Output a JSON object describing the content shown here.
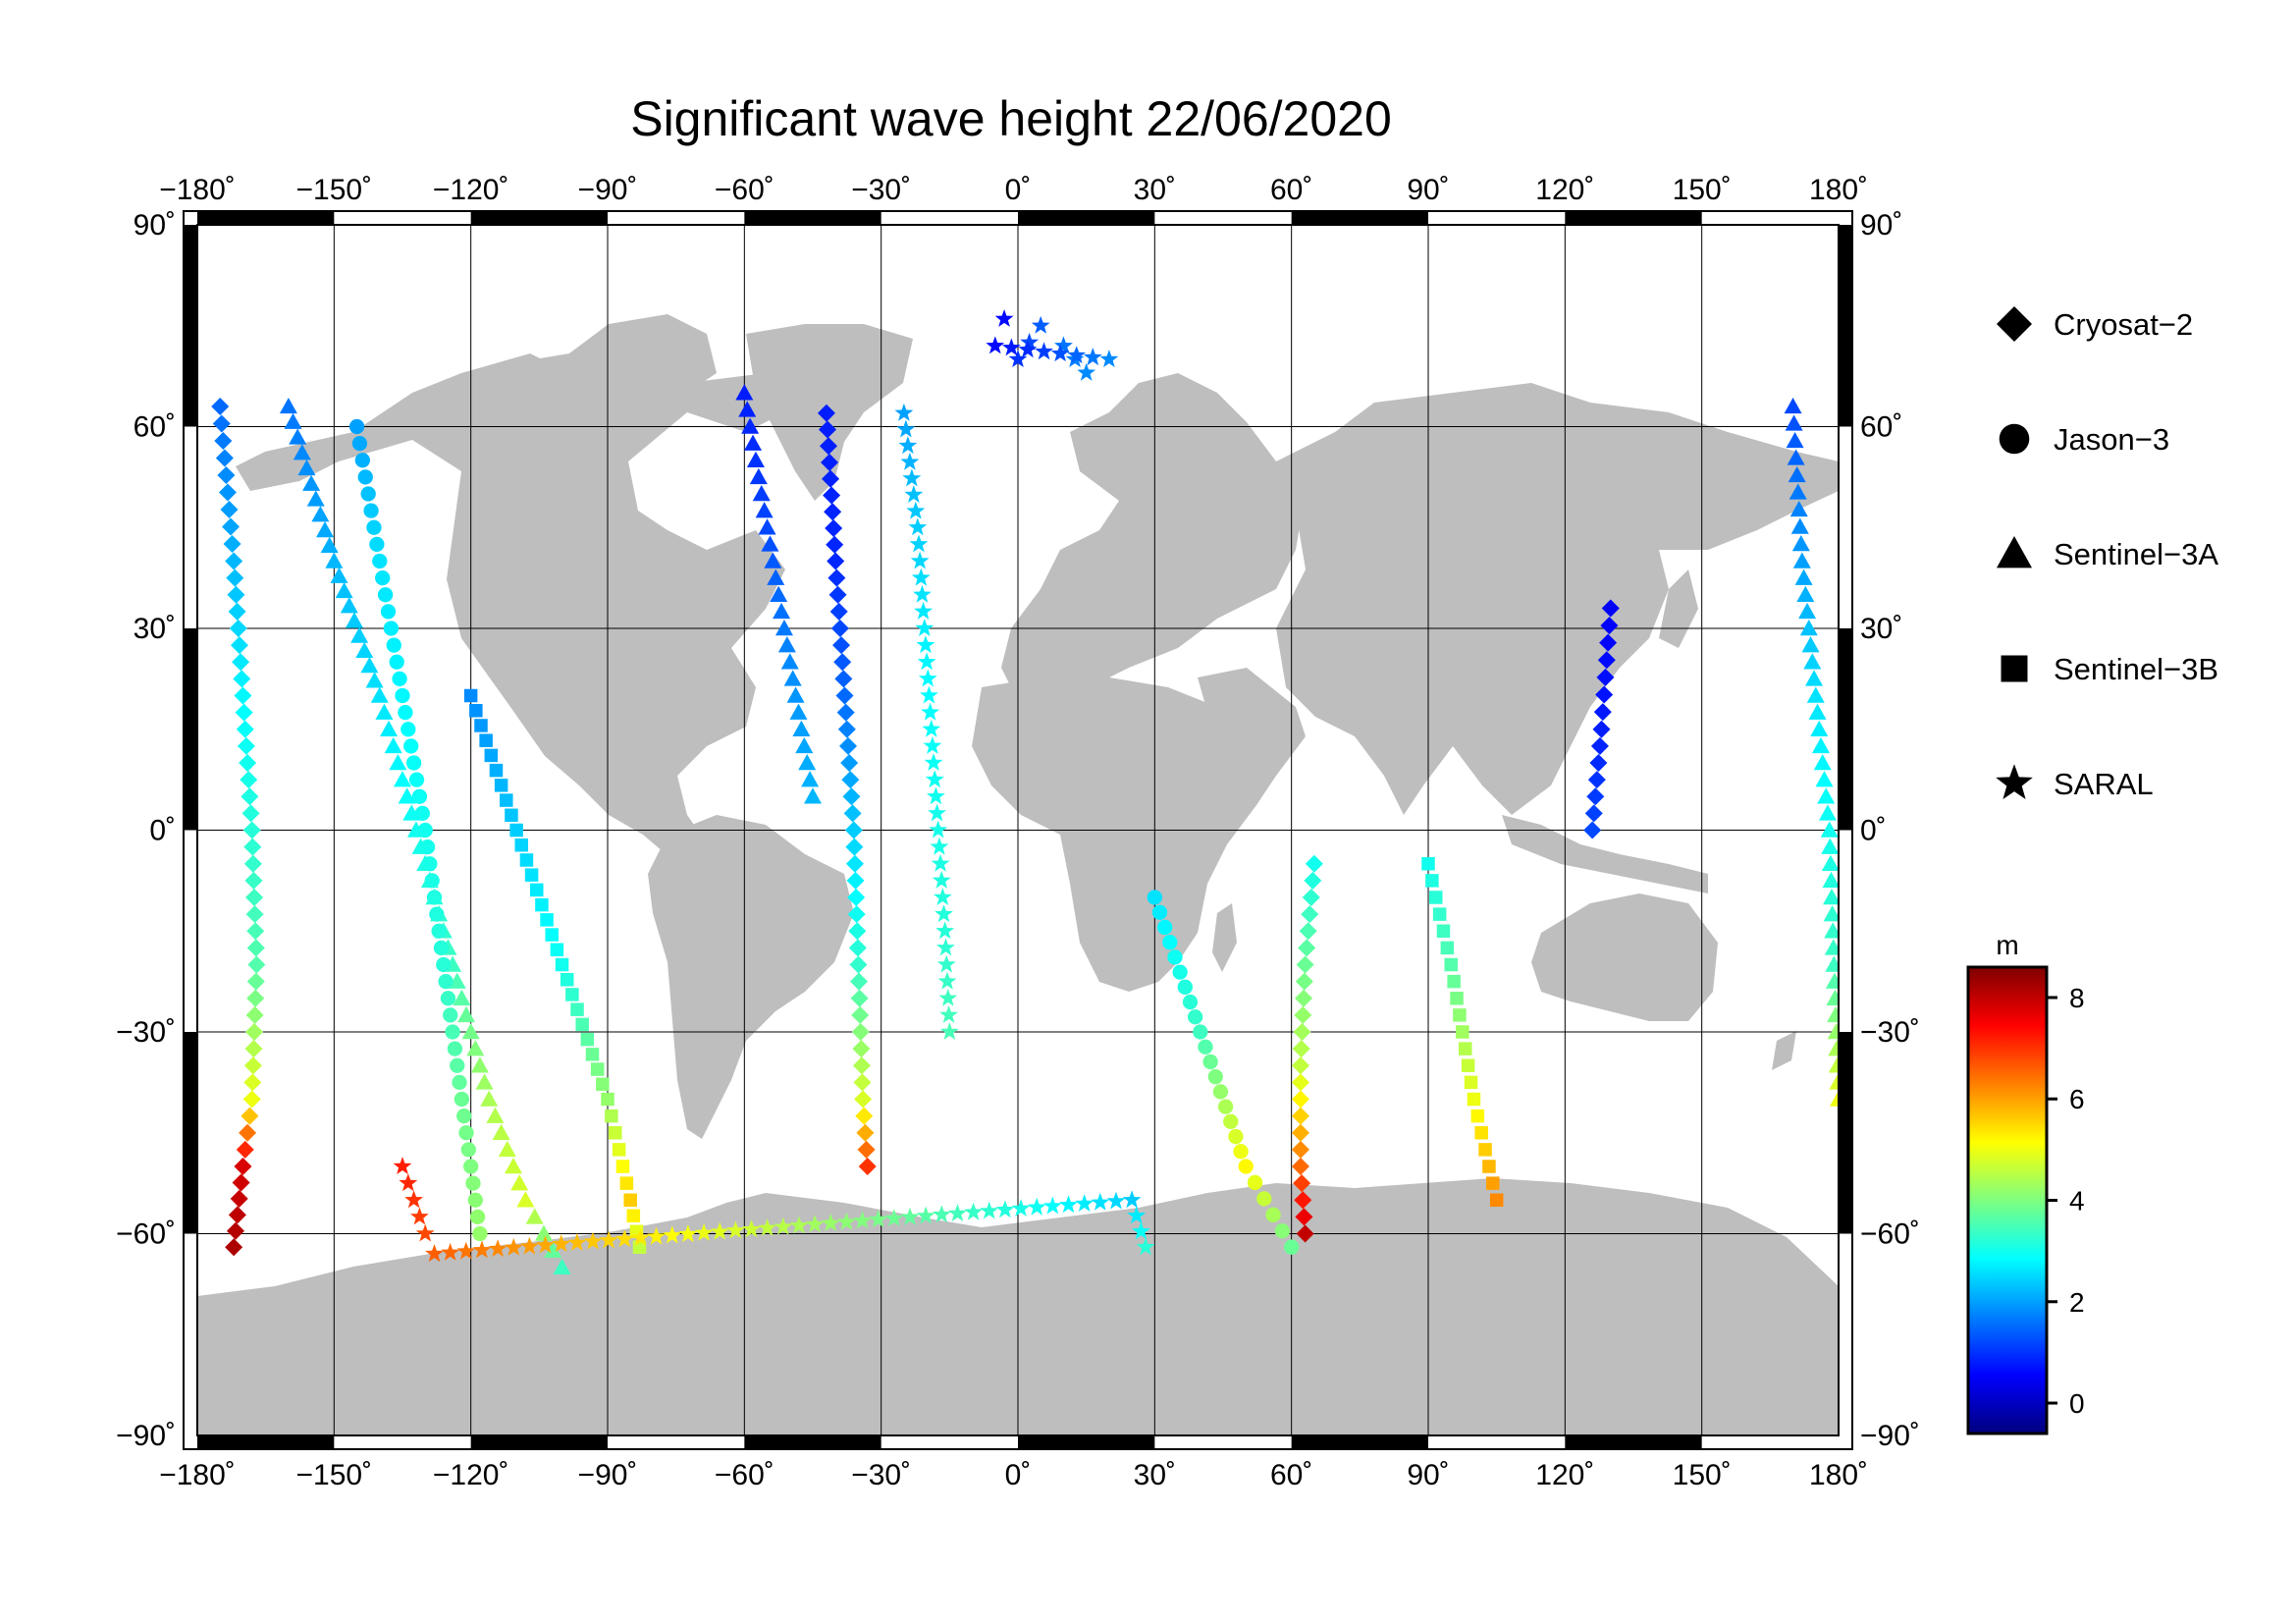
{
  "title": "Significant wave height 22/06/2020",
  "map": {
    "lon_ticks": [
      "−180˚",
      "−150˚",
      "−120˚",
      "−90˚",
      "−60˚",
      "−30˚",
      "0˚",
      "30˚",
      "60˚",
      "90˚",
      "120˚",
      "150˚",
      "180˚"
    ],
    "lat_ticks_left": [
      "90˚",
      "60˚",
      "30˚",
      "0˚",
      "−30˚",
      "−60˚",
      "−90˚"
    ],
    "lat_ticks_right": [
      "90˚",
      "60˚",
      "30˚",
      "0˚",
      "−30˚",
      "−60˚",
      "−90˚"
    ],
    "lon_range": [
      -180,
      180
    ],
    "lat_range": [
      -90,
      90
    ],
    "grid": true,
    "land_color": "#bebebe",
    "ocean_color": "#ffffff"
  },
  "legend": {
    "items": [
      {
        "label": "Cryosat−2",
        "marker": "diamond"
      },
      {
        "label": "Jason−3",
        "marker": "circle"
      },
      {
        "label": "Sentinel−3A",
        "marker": "triangle"
      },
      {
        "label": "Sentinel−3B",
        "marker": "square"
      },
      {
        "label": "SARAL",
        "marker": "star"
      }
    ]
  },
  "colorbar": {
    "unit": "m",
    "ticks": [
      "0",
      "2",
      "4",
      "6",
      "8"
    ],
    "range": [
      -0.6,
      8.6
    ],
    "colormap": [
      "#00007f",
      "#0000ff",
      "#007fff",
      "#00ffff",
      "#7fff7f",
      "#ffff00",
      "#ff7f00",
      "#ff0000",
      "#7f0000"
    ]
  },
  "chart_data": {
    "type": "scatter",
    "title": "Significant wave height 22/06/2020",
    "xlabel": "",
    "ylabel": "",
    "xlim": [
      -180,
      180
    ],
    "ylim": [
      -90,
      90
    ],
    "color_variable": "m",
    "tracks": [
      {
        "name": "Cryosat−2",
        "marker": "diamond",
        "points": [
          [
            -175,
            63,
            1.5
          ],
          [
            -172,
            40,
            2.2
          ],
          [
            -170,
            20,
            2.8
          ],
          [
            -168,
            0,
            3.2
          ],
          [
            -167,
            -20,
            3.6
          ],
          [
            -168,
            -40,
            5
          ],
          [
            -170,
            -50,
            7.8
          ],
          [
            -172,
            -62,
            8.2
          ]
        ]
      },
      {
        "name": "Cryosat−2",
        "marker": "diamond",
        "points": [
          [
            -42,
            62,
            0.8
          ],
          [
            -40,
            40,
            0.9
          ],
          [
            -38,
            20,
            1.5
          ],
          [
            -36,
            0,
            2.4
          ],
          [
            -35,
            -20,
            3.3
          ],
          [
            -34,
            -40,
            4.8
          ],
          [
            -33,
            -50,
            7
          ]
        ]
      },
      {
        "name": "Cryosat−2",
        "marker": "diamond",
        "points": [
          [
            65,
            -5,
            3
          ],
          [
            63,
            -20,
            3.8
          ],
          [
            62,
            -35,
            4.6
          ],
          [
            62,
            -50,
            6.5
          ],
          [
            63,
            -60,
            8
          ]
        ]
      },
      {
        "name": "Cryosat−2",
        "marker": "diamond",
        "points": [
          [
            130,
            33,
            0.5
          ],
          [
            128,
            15,
            0.8
          ],
          [
            126,
            0,
            1.2
          ]
        ]
      },
      {
        "name": "Sentinel−3A",
        "marker": "triangle",
        "points": [
          [
            -160,
            63,
            1.6
          ],
          [
            -150,
            40,
            2.2
          ],
          [
            -140,
            20,
            2.6
          ],
          [
            -132,
            0,
            3
          ],
          [
            -124,
            -20,
            3.4
          ],
          [
            -116,
            -40,
            4.4
          ],
          [
            -108,
            -55,
            4.8
          ],
          [
            -100,
            -65,
            3.4
          ]
        ]
      },
      {
        "name": "Sentinel−3A",
        "marker": "triangle",
        "points": [
          [
            -60,
            65,
            0.8
          ],
          [
            -55,
            45,
            1.2
          ],
          [
            -50,
            25,
            1.8
          ],
          [
            -45,
            5,
            2.2
          ]
        ]
      },
      {
        "name": "Sentinel−3A",
        "marker": "triangle",
        "points": [
          [
            170,
            63,
            1.2
          ],
          [
            172,
            40,
            2
          ],
          [
            175,
            20,
            2.6
          ],
          [
            178,
            0,
            3
          ],
          [
            179,
            -20,
            3.4
          ],
          [
            180,
            -40,
            5
          ]
        ]
      },
      {
        "name": "Sentinel−3B",
        "marker": "square",
        "points": [
          [
            -120,
            20,
            1.8
          ],
          [
            -110,
            0,
            2.4
          ],
          [
            -100,
            -20,
            3
          ],
          [
            -90,
            -40,
            4.2
          ],
          [
            -85,
            -55,
            5.6
          ],
          [
            -83,
            -62,
            4.6
          ]
        ]
      },
      {
        "name": "Sentinel−3B",
        "marker": "square",
        "points": [
          [
            90,
            -5,
            3
          ],
          [
            95,
            -20,
            3.6
          ],
          [
            100,
            -40,
            5
          ],
          [
            105,
            -55,
            6.2
          ]
        ]
      },
      {
        "name": "Jason−3",
        "marker": "circle",
        "points": [
          [
            -145,
            60,
            2
          ],
          [
            -140,
            40,
            2.6
          ],
          [
            -135,
            20,
            2.8
          ],
          [
            -130,
            0,
            3
          ],
          [
            -126,
            -20,
            3.2
          ],
          [
            -122,
            -40,
            3.8
          ],
          [
            -118,
            -60,
            4.2
          ]
        ]
      },
      {
        "name": "Jason−3",
        "marker": "circle",
        "points": [
          [
            30,
            -10,
            2.6
          ],
          [
            40,
            -30,
            3.4
          ],
          [
            50,
            -50,
            5.2
          ],
          [
            60,
            -62,
            3.8
          ]
        ]
      },
      {
        "name": "SARAL",
        "marker": "star",
        "points": [
          [
            0,
            70,
            1
          ],
          [
            5,
            75,
            1.4
          ],
          [
            10,
            72,
            1.6
          ],
          [
            15,
            68,
            1.8
          ],
          [
            20,
            70,
            1.8
          ],
          [
            -5,
            72,
            0.6
          ],
          [
            -3,
            76,
            0.6
          ]
        ]
      },
      {
        "name": "SARAL",
        "marker": "star",
        "points": [
          [
            -25,
            62,
            2
          ],
          [
            -22,
            45,
            2.4
          ],
          [
            -20,
            25,
            2.8
          ],
          [
            -18,
            5,
            3
          ],
          [
            -16,
            -15,
            3.2
          ],
          [
            -15,
            -30,
            3.5
          ]
        ]
      },
      {
        "name": "SARAL",
        "marker": "star",
        "points": [
          [
            -135,
            -50,
            7.2
          ],
          [
            -130,
            -60,
            6.8
          ],
          [
            -128,
            -63,
            6.6
          ],
          [
            25,
            -55,
            2.4
          ],
          [
            28,
            -62,
            3.2
          ]
        ]
      }
    ]
  }
}
